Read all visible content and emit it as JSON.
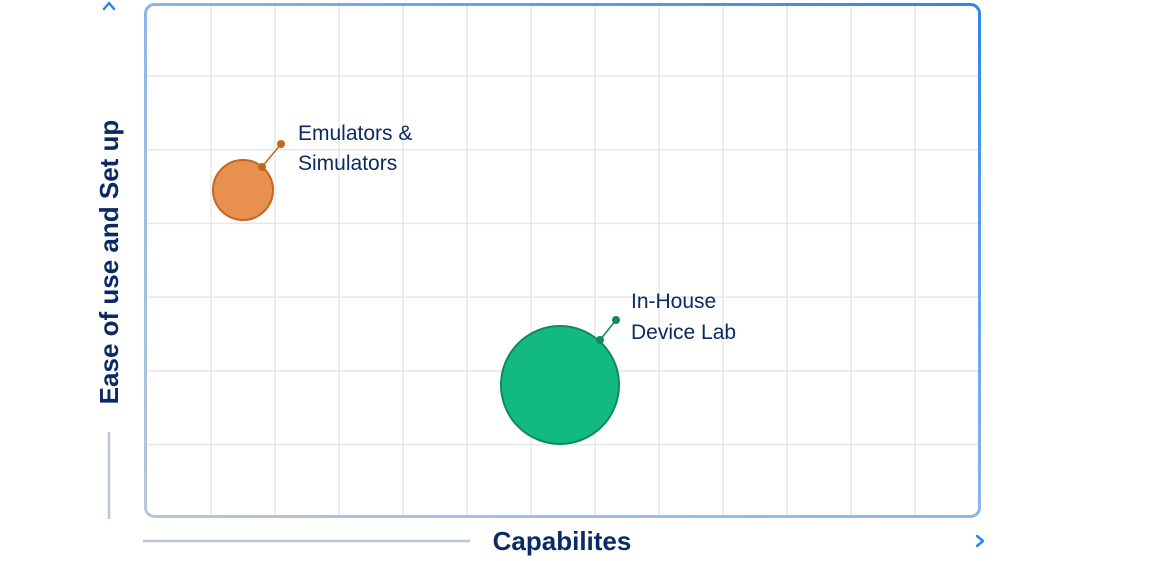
{
  "chart_data": {
    "type": "bubble",
    "title": "",
    "xlabel": "Capabilites",
    "ylabel": "Ease of use and Set up",
    "grid": true,
    "axis_ticks": "none",
    "grid_columns": 13,
    "grid_rows": 7,
    "series": [
      {
        "name": "Emulators & Simulators",
        "label_lines": [
          "Emulators &",
          "Simulators"
        ],
        "x": 1.5,
        "y": 4.5,
        "size": "small",
        "radius_px": 30,
        "color": "#e8914e",
        "stroke": "#c3661f"
      },
      {
        "name": "In-House Device Lab",
        "label_lines": [
          "In-House",
          "Device Lab"
        ],
        "x": 6.5,
        "y": 1.8,
        "size": "large",
        "radius_px": 59,
        "color": "#12b981",
        "stroke": "#0f8a5c"
      }
    ],
    "colors": {
      "axis_arrow": "#2b86ee",
      "axis_muted": "#b8c6d6",
      "grid": "#e6e7ea",
      "text": "#0b2a63"
    }
  }
}
